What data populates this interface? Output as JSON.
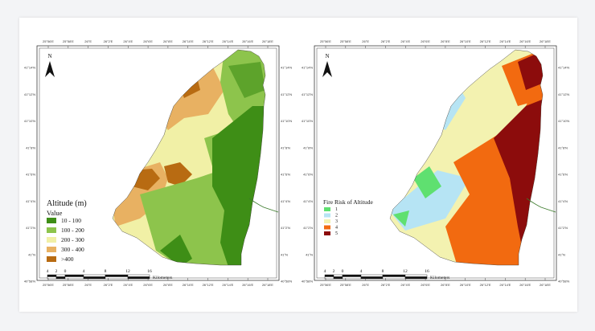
{
  "maps": [
    {
      "legend_title": "Altitude (m)",
      "legend_subtitle": "Value",
      "classes": [
        {
          "label": "10 - 100",
          "color": "#3e8e16"
        },
        {
          "label": "100 - 200",
          "color": "#8dc44c"
        },
        {
          "label": "200 - 300",
          "color": "#f1f0a6"
        },
        {
          "label": "300 - 400",
          "color": "#e8b162"
        },
        {
          "label": ">400",
          "color": "#b86b12"
        }
      ]
    },
    {
      "legend_title": "Fire Risk of Altitude",
      "legend_subtitle": "",
      "classes": [
        {
          "label": "1",
          "color": "#5fe070"
        },
        {
          "label": "2",
          "color": "#b6e4f4"
        },
        {
          "label": "3",
          "color": "#f3f2b0"
        },
        {
          "label": "4",
          "color": "#f26a10"
        },
        {
          "label": "5",
          "color": "#8c0c0c"
        }
      ]
    }
  ],
  "north_label": "N",
  "scale": {
    "ticks": [
      "4",
      "2",
      "0",
      "4",
      "8",
      "12",
      "16"
    ],
    "unit": "Kilometers"
  },
  "lon_ticks": [
    "25°56'E",
    "25°58'E",
    "26°E",
    "26°2'E",
    "26°4'E",
    "26°6'E",
    "26°8'E",
    "26°10'E",
    "26°12'E",
    "26°14'E",
    "26°16'E",
    "26°18'E"
  ],
  "lat_left": [
    "41°14'N",
    "41°12'N",
    "41°10'N",
    "41°8'N",
    "41°6'N",
    "41°4'N",
    "41°2'N",
    "41°N",
    "40°58'N"
  ],
  "lat_right": [
    "41°14'N",
    "41°12'N",
    "41°10'N",
    "41°8'N",
    "41°6'N",
    "41°4'N",
    "41°2'N",
    "41°N",
    "40°58'N"
  ]
}
